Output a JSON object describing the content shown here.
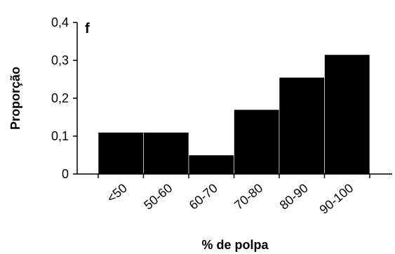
{
  "chart_data": {
    "type": "bar",
    "panel_label": "f",
    "categories": [
      "<50",
      "50-60",
      "60-70",
      "70-80",
      "80-90",
      "90-100"
    ],
    "values": [
      0.11,
      0.11,
      0.05,
      0.17,
      0.255,
      0.315
    ],
    "xlabel": "% de polpa",
    "ylabel": "Proporção",
    "ylim": [
      0,
      0.4
    ],
    "yticks": [
      0,
      0.1,
      0.2,
      0.3,
      0.4
    ],
    "ytick_labels": [
      "0",
      "0,1",
      "0,2",
      "0,3",
      "0,4"
    ],
    "bar_color": "#000000",
    "bar_edge_color": "#ffffff",
    "grid": false,
    "legend": "none"
  }
}
